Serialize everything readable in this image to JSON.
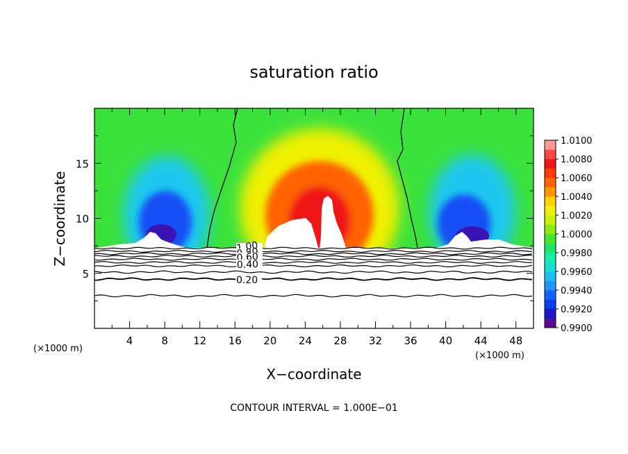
{
  "chart_data": {
    "type": "heatmap",
    "title": "saturation ratio",
    "xlabel": "X−coordinate",
    "ylabel": "Z−coordinate",
    "x_unit_left": "(×1000 m)",
    "x_unit_right": "(×1000 m)",
    "footer": "CONTOUR INTERVAL = 1.000E−01",
    "xlim": [
      0,
      50
    ],
    "ylim": [
      0,
      20
    ],
    "x_ticks": [
      4,
      8,
      12,
      16,
      20,
      24,
      28,
      32,
      36,
      40,
      44,
      48
    ],
    "x_tick_labels": [
      "4",
      "8",
      "12",
      "16",
      "20",
      "24",
      "28",
      "32",
      "36",
      "40",
      "44",
      "48"
    ],
    "y_ticks": [
      5,
      10,
      15
    ],
    "y_tick_labels": [
      "5",
      "10",
      "15"
    ],
    "colorbar": {
      "min": 0.99,
      "max": 1.01,
      "levels": [
        0.99,
        0.991,
        0.992,
        0.993,
        0.994,
        0.995,
        0.996,
        0.997,
        0.998,
        0.999,
        1.0,
        1.001,
        1.002,
        1.003,
        1.004,
        1.005,
        1.006,
        1.007,
        1.008,
        1.009,
        1.01
      ],
      "colors": [
        "#5a0a96",
        "#1e14c8",
        "#0a3cf0",
        "#1464ff",
        "#1e96ff",
        "#1ebef5",
        "#14e1d2",
        "#14f0aa",
        "#1ee664",
        "#46e628",
        "#8ceb14",
        "#c8f000",
        "#f0f000",
        "#ffd200",
        "#ff9600",
        "#ff6400",
        "#ff3c00",
        "#f01414",
        "#ff4646",
        "#ff9696"
      ],
      "tick_values": [
        0.99,
        0.992,
        0.994,
        0.996,
        0.998,
        1.0,
        1.002,
        1.004,
        1.006,
        1.008,
        1.01
      ],
      "tick_labels": [
        "0.9900",
        "0.9920",
        "0.9940",
        "0.9960",
        "0.9980",
        "1.0000",
        "1.0020",
        "1.0040",
        "1.0060",
        "1.0080",
        "1.0100"
      ]
    },
    "contour_lines": [
      {
        "value": 1.0,
        "label": "1.00"
      },
      {
        "value": 0.8,
        "label": "0.80"
      },
      {
        "value": 0.6,
        "label": "0.60"
      },
      {
        "value": 0.4,
        "label": "0.40"
      },
      {
        "value": 0.2,
        "label": "0.20"
      }
    ],
    "grid": false
  }
}
